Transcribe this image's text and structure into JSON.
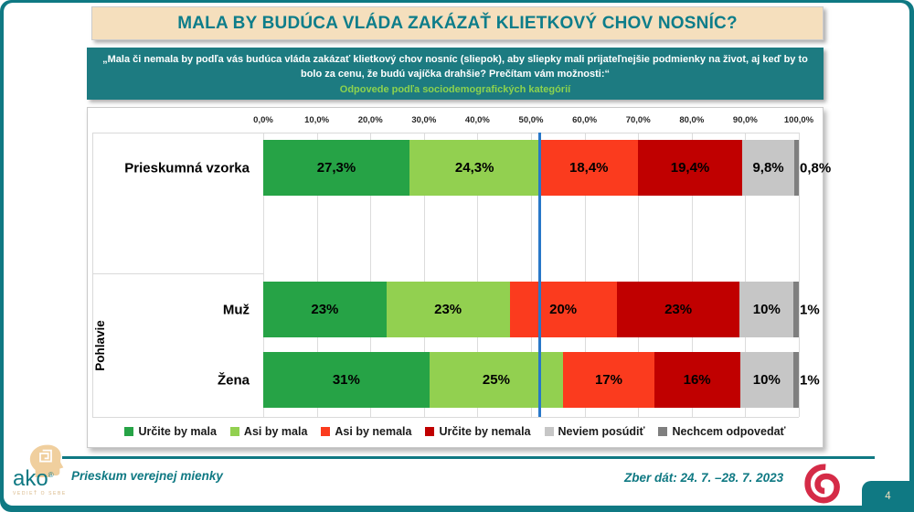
{
  "page_number": "4",
  "title": "MALA BY BUDÚCA VLÁDA ZAKÁZAŤ KLIETKOVÝ CHOV NOSNÍC?",
  "subtitle": {
    "question": "„Mala či nemala by podľa vás budúca vláda zakázať klietkový chov nosníc (sliepok), aby sliepky mali prijateľnejšie podmienky na život, aj keď by to bolo za cenu, že budú vajíčka drahšie? Prečítam vám možnosti:“",
    "note": "Odpovede podľa sociodemografických kategórií"
  },
  "chart_data": {
    "type": "bar",
    "orientation": "horizontal",
    "stacked": true,
    "xlim": [
      0,
      100
    ],
    "grid": true,
    "legend_position": "bottom",
    "x_ticks": [
      "0,0%",
      "10,0%",
      "20,0%",
      "30,0%",
      "40,0%",
      "50,0%",
      "60,0%",
      "70,0%",
      "80,0%",
      "90,0%",
      "100,0%"
    ],
    "categories": [
      "Prieskumná vzorka",
      "Muž",
      "Žena"
    ],
    "groups": [
      {
        "label": "",
        "category_indexes": [
          0
        ]
      },
      {
        "label": "Pohlavie",
        "category_indexes": [
          1,
          2
        ]
      }
    ],
    "series": [
      {
        "name": "Určite by mala",
        "color": "#26A346",
        "values": [
          27.3,
          23,
          31
        ],
        "labels": [
          "27,3%",
          "23%",
          "31%"
        ]
      },
      {
        "name": "Asi by mala",
        "color": "#92D050",
        "values": [
          24.3,
          23,
          25
        ],
        "labels": [
          "24,3%",
          "23%",
          "25%"
        ]
      },
      {
        "name": "Asi by nemala",
        "color": "#FB3B1E",
        "values": [
          18.4,
          20,
          17
        ],
        "labels": [
          "18,4%",
          "20%",
          "17%"
        ]
      },
      {
        "name": "Určite by nemala",
        "color": "#C00000",
        "values": [
          19.4,
          23,
          16
        ],
        "labels": [
          "19,4%",
          "23%",
          "16%"
        ]
      },
      {
        "name": "Neviem posúdiť",
        "color": "#C6C6C6",
        "values": [
          9.8,
          10,
          10
        ],
        "labels": [
          "9,8%",
          "10%",
          "10%"
        ]
      },
      {
        "name": "Nechcem odpovedať",
        "color": "#7F7F7F",
        "values": [
          0.8,
          1,
          1
        ],
        "labels": [
          "0,8%",
          "1%",
          "1%"
        ]
      }
    ],
    "reference_line": {
      "value": 51.6,
      "color": "#2878C8"
    }
  },
  "footer": {
    "logo_word": "ako",
    "logo_reg": "®",
    "logo_tagline": "VEDIEŤ O SEBE",
    "left_text": "Prieskum verejnej mienky",
    "right_text": "Zber dát: 24. 7. –28. 7. 2023"
  },
  "colors": {
    "teal": "#0F7983",
    "teal_band": "#1D7B81",
    "title_text": "#0D7D8A",
    "cream": "#F5DFBD",
    "note_green": "#8CD24E",
    "spiral_red": "#D52B47",
    "gridline": "#DCDCDC"
  }
}
